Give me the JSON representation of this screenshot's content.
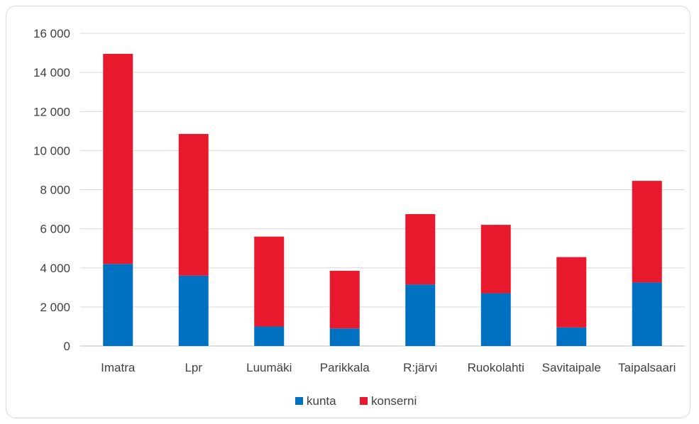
{
  "chart_data": {
    "type": "bar",
    "stacked": true,
    "categories": [
      "Imatra",
      "Lpr",
      "Luumäki",
      "Parikkala",
      "R:järvi",
      "Ruokolahti",
      "Savitaipale",
      "Taipalsaari"
    ],
    "series": [
      {
        "name": "kunta",
        "color": "#0070c0",
        "values": [
          4200,
          3600,
          1000,
          900,
          3150,
          2700,
          950,
          3250
        ]
      },
      {
        "name": "konserni",
        "color": "#e8192c",
        "values": [
          10750,
          7250,
          4600,
          2950,
          3600,
          3500,
          3600,
          5200
        ]
      }
    ],
    "ylim": [
      0,
      16000
    ],
    "yticks": [
      0,
      2000,
      4000,
      6000,
      8000,
      10000,
      12000,
      14000,
      16000
    ],
    "ytick_labels": [
      "0",
      "2 000",
      "4 000",
      "6 000",
      "8 000",
      "10 000",
      "12 000",
      "14 000",
      "16 000"
    ],
    "grid": true,
    "legend_position": "bottom"
  }
}
